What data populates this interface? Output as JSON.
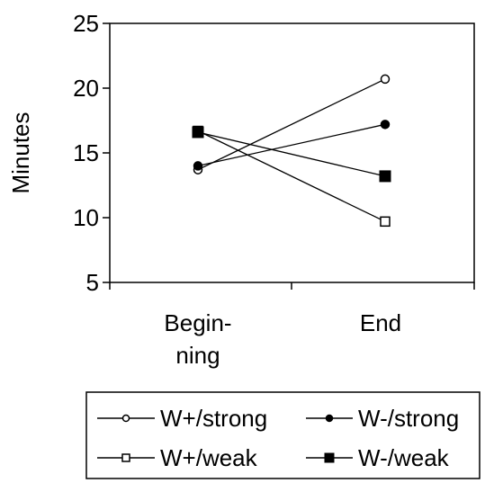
{
  "chart_data": {
    "type": "line",
    "title": "",
    "xlabel": "",
    "ylabel": "Minutes",
    "categories": [
      "Begin-\nning",
      "End"
    ],
    "ylim": [
      5,
      25
    ],
    "yticks": [
      5,
      10,
      15,
      20,
      25
    ],
    "grid": false,
    "legend_position": "bottom",
    "series": [
      {
        "name": "W+/strong",
        "marker": "open-circle",
        "values": [
          13.7,
          20.7
        ]
      },
      {
        "name": "W-/strong",
        "marker": "filled-circle",
        "values": [
          14.0,
          17.2
        ]
      },
      {
        "name": "W+/weak",
        "marker": "open-square",
        "values": [
          16.7,
          9.7
        ]
      },
      {
        "name": "W-/weak",
        "marker": "filled-square",
        "values": [
          16.6,
          13.2
        ]
      }
    ],
    "colors": {
      "line": "#000000",
      "background": "#ffffff"
    }
  }
}
